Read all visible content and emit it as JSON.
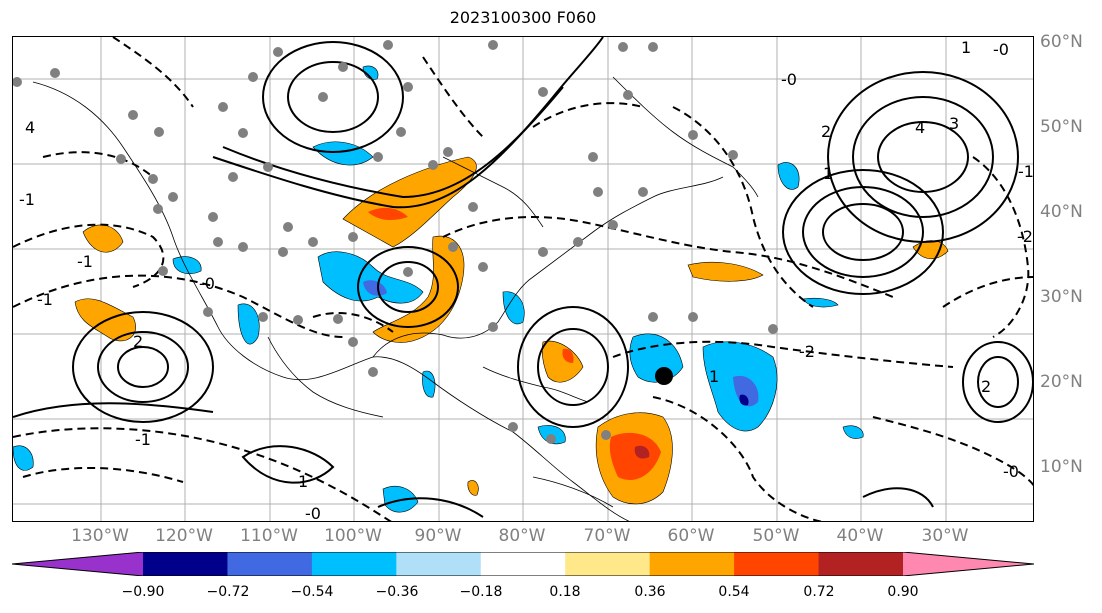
{
  "title": "2023100300 F060",
  "latitude_labels": [
    "60°N",
    "50°N",
    "40°N",
    "30°N",
    "20°N",
    "10°N"
  ],
  "longitude_labels": [
    "130°W",
    "120°W",
    "110°W",
    "100°W",
    "90°W",
    "80°W",
    "70°W",
    "60°W",
    "50°W",
    "40°W",
    "30°W"
  ],
  "colorbar": {
    "tick_labels": [
      "−0.90",
      "−0.72",
      "−0.54",
      "−0.36",
      "−0.18",
      "0.18",
      "0.36",
      "0.54",
      "0.72",
      "0.90"
    ],
    "colors": [
      "#9932cc",
      "#00008b",
      "#4169e1",
      "#00bfff",
      "#b0e0f8",
      "#ffffff",
      "#ffe88a",
      "#ffa500",
      "#ff4500",
      "#b22222",
      "#ff88b0"
    ]
  },
  "contour_labels": [
    "1",
    "-0",
    "2",
    "4",
    "3",
    "-1",
    "-2",
    "1",
    "-0",
    "2",
    "4",
    "-1",
    "-2",
    "2",
    "-0",
    "-1",
    "1",
    "-1",
    "1",
    "-0",
    "-0",
    "-1"
  ],
  "marker_colors": {
    "stations": "#808080",
    "center": "#000000"
  }
}
